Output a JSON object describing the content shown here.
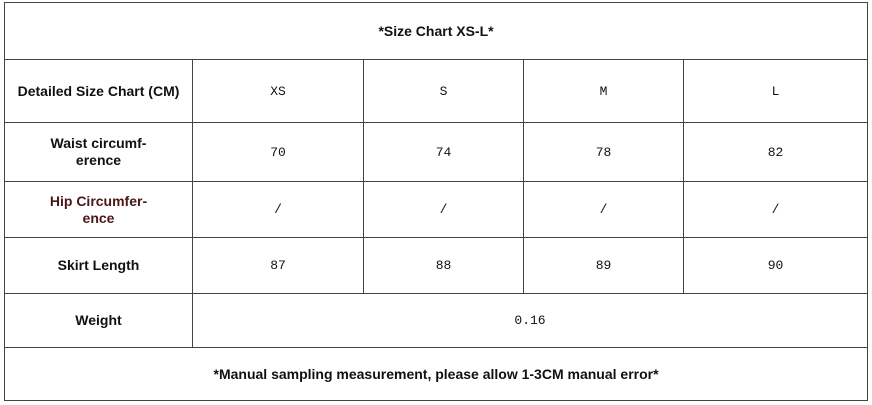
{
  "title": "*Size Chart XS-L*",
  "table": {
    "header": [
      "Detailed Size Chart (CM)",
      "XS",
      "S",
      "M",
      "L"
    ],
    "rows": [
      [
        "Waist circumf-\nerence",
        70,
        74,
        78,
        82
      ],
      [
        "Hip Circumfer-\nence",
        "/",
        "/",
        "/",
        "/"
      ],
      [
        "Skirt Length",
        87,
        88,
        89,
        90
      ]
    ],
    "weight": {
      "label": "Weight",
      "value": 0.16
    }
  },
  "footer": "*Manual sampling measurement, please allow 1-3CM manual error*"
}
